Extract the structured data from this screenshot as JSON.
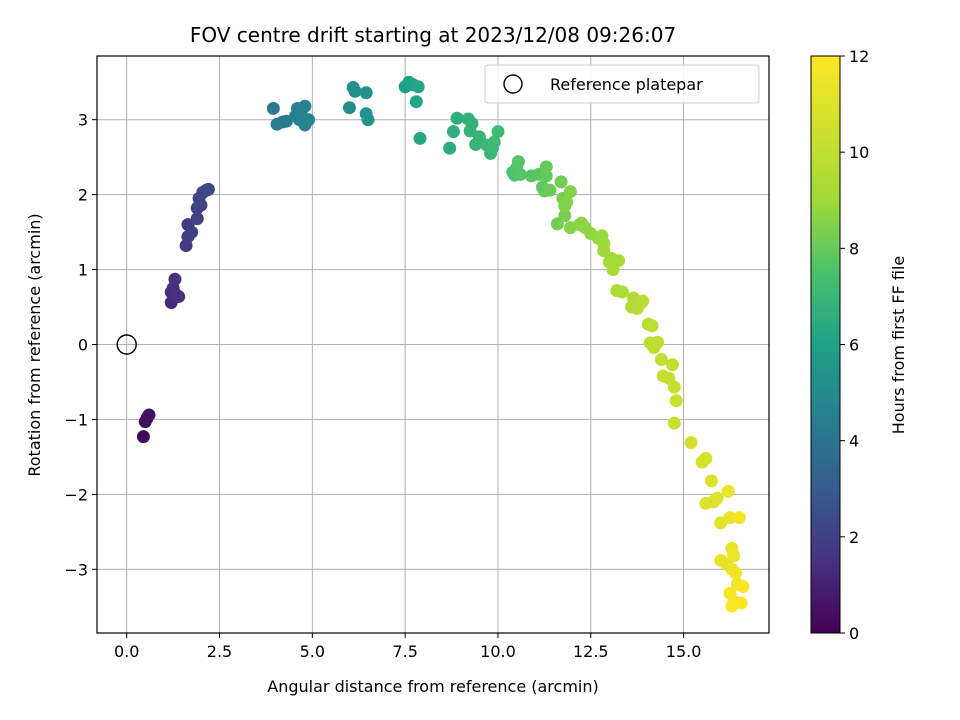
{
  "chart_data": {
    "type": "scatter",
    "title": "FOV centre drift starting at 2023/12/08 09:26:07",
    "xlabel": "Angular distance from reference (arcmin)",
    "ylabel": "Rotation from reference (arcmin)",
    "xlim": [
      -0.8,
      17.3
    ],
    "ylim": [
      -3.85,
      3.85
    ],
    "xticks": [
      0.0,
      2.5,
      5.0,
      7.5,
      10.0,
      12.5,
      15.0
    ],
    "xtick_labels": [
      "0.0",
      "2.5",
      "5.0",
      "7.5",
      "10.0",
      "12.5",
      "15.0"
    ],
    "yticks": [
      -3,
      -2,
      -1,
      0,
      1,
      2,
      3
    ],
    "ytick_labels": [
      "−3",
      "−2",
      "−1",
      "0",
      "1",
      "2",
      "3"
    ],
    "grid": true,
    "legend": {
      "placement": "top-right",
      "entries": [
        "Reference platepar"
      ]
    },
    "reference_point": {
      "x": 0.0,
      "y": 0.0
    },
    "colorbar": {
      "label": "Hours from first FF file",
      "range": [
        0,
        12
      ],
      "ticks": [
        0,
        2,
        4,
        6,
        8,
        10,
        12
      ],
      "tick_labels": [
        "0",
        "2",
        "4",
        "6",
        "8",
        "10",
        "12"
      ],
      "colormap": "viridis"
    },
    "points": [
      [
        0.45,
        -1.23,
        0.2
      ],
      [
        0.5,
        -1.03,
        0.3
      ],
      [
        0.55,
        -0.98,
        0.4
      ],
      [
        0.6,
        -0.94,
        0.5
      ],
      [
        1.2,
        0.56,
        1.3
      ],
      [
        1.2,
        0.7,
        1.35
      ],
      [
        1.25,
        0.75,
        1.4
      ],
      [
        1.3,
        0.68,
        1.45
      ],
      [
        1.3,
        0.87,
        1.5
      ],
      [
        1.4,
        0.64,
        1.55
      ],
      [
        1.6,
        1.32,
        1.8
      ],
      [
        1.65,
        1.44,
        1.85
      ],
      [
        1.65,
        1.6,
        1.9
      ],
      [
        1.75,
        1.5,
        1.95
      ],
      [
        1.9,
        1.68,
        2.0
      ],
      [
        1.9,
        1.82,
        2.05
      ],
      [
        1.95,
        1.95,
        2.1
      ],
      [
        2.0,
        1.86,
        2.15
      ],
      [
        2.05,
        2.03,
        2.2
      ],
      [
        2.15,
        2.06,
        2.25
      ],
      [
        2.2,
        2.07,
        2.3
      ],
      [
        3.95,
        3.15,
        4.3
      ],
      [
        4.05,
        2.94,
        4.35
      ],
      [
        4.2,
        2.97,
        4.4
      ],
      [
        4.3,
        2.98,
        4.45
      ],
      [
        4.55,
        3.05,
        4.5
      ],
      [
        4.6,
        3.15,
        4.55
      ],
      [
        4.65,
        3.0,
        4.6
      ],
      [
        4.7,
        3.1,
        4.6
      ],
      [
        4.8,
        3.18,
        4.65
      ],
      [
        4.8,
        2.93,
        4.65
      ],
      [
        4.9,
        3.0,
        4.7
      ],
      [
        6.0,
        3.16,
        5.1
      ],
      [
        6.1,
        3.43,
        5.2
      ],
      [
        6.15,
        3.38,
        5.25
      ],
      [
        6.45,
        3.36,
        5.3
      ],
      [
        6.45,
        3.08,
        5.35
      ],
      [
        6.5,
        3.0,
        5.4
      ],
      [
        7.5,
        3.44,
        6.0
      ],
      [
        7.6,
        3.5,
        6.05
      ],
      [
        7.7,
        3.47,
        6.1
      ],
      [
        7.8,
        3.24,
        6.15
      ],
      [
        7.85,
        3.44,
        6.2
      ],
      [
        7.9,
        2.75,
        6.3
      ],
      [
        8.7,
        2.62,
        6.5
      ],
      [
        8.8,
        2.84,
        6.55
      ],
      [
        8.9,
        3.02,
        6.6
      ],
      [
        9.2,
        3.01,
        6.7
      ],
      [
        9.25,
        2.85,
        6.75
      ],
      [
        9.3,
        2.95,
        6.8
      ],
      [
        9.4,
        2.67,
        6.85
      ],
      [
        9.5,
        2.77,
        6.9
      ],
      [
        9.7,
        2.66,
        6.95
      ],
      [
        9.8,
        2.55,
        7.0
      ],
      [
        9.85,
        2.62,
        7.05
      ],
      [
        9.9,
        2.7,
        7.1
      ],
      [
        10.0,
        2.84,
        7.15
      ],
      [
        10.4,
        2.3,
        7.5
      ],
      [
        10.45,
        2.26,
        7.55
      ],
      [
        10.5,
        2.35,
        7.6
      ],
      [
        10.55,
        2.44,
        7.65
      ],
      [
        10.6,
        2.27,
        7.7
      ],
      [
        10.9,
        2.25,
        7.75
      ],
      [
        11.1,
        2.27,
        7.8
      ],
      [
        11.2,
        2.1,
        7.85
      ],
      [
        11.25,
        2.05,
        7.9
      ],
      [
        11.3,
        2.25,
        7.95
      ],
      [
        11.3,
        2.37,
        8.0
      ],
      [
        11.4,
        2.06,
        8.05
      ],
      [
        11.6,
        1.61,
        8.2
      ],
      [
        11.7,
        2.17,
        8.25
      ],
      [
        11.75,
        1.95,
        8.3
      ],
      [
        11.8,
        1.72,
        8.35
      ],
      [
        11.8,
        1.85,
        8.4
      ],
      [
        11.85,
        1.9,
        8.45
      ],
      [
        11.95,
        2.04,
        8.5
      ],
      [
        11.95,
        1.56,
        8.55
      ],
      [
        12.2,
        1.6,
        8.6
      ],
      [
        12.25,
        1.62,
        8.65
      ],
      [
        12.35,
        1.56,
        8.7
      ],
      [
        12.5,
        1.48,
        8.75
      ],
      [
        12.7,
        1.42,
        8.8
      ],
      [
        12.8,
        1.45,
        8.85
      ],
      [
        12.85,
        1.35,
        8.9
      ],
      [
        12.85,
        1.25,
        8.95
      ],
      [
        13.0,
        1.1,
        9.1
      ],
      [
        13.05,
        1.15,
        9.15
      ],
      [
        13.1,
        1.0,
        9.2
      ],
      [
        13.25,
        1.12,
        9.25
      ],
      [
        13.2,
        0.72,
        9.35
      ],
      [
        13.35,
        0.7,
        9.4
      ],
      [
        13.6,
        0.5,
        9.5
      ],
      [
        13.65,
        0.62,
        9.55
      ],
      [
        13.75,
        0.48,
        9.6
      ],
      [
        13.85,
        0.55,
        9.65
      ],
      [
        13.9,
        0.58,
        9.7
      ],
      [
        14.05,
        0.27,
        9.8
      ],
      [
        14.15,
        0.25,
        9.85
      ],
      [
        14.1,
        0.02,
        9.9
      ],
      [
        14.2,
        -0.04,
        9.95
      ],
      [
        14.3,
        0.03,
        10.0
      ],
      [
        14.4,
        -0.2,
        10.05
      ],
      [
        14.45,
        -0.42,
        10.1
      ],
      [
        14.6,
        -0.45,
        10.15
      ],
      [
        14.7,
        -0.27,
        10.2
      ],
      [
        14.75,
        -0.57,
        10.25
      ],
      [
        14.8,
        -0.75,
        10.3
      ],
      [
        14.75,
        -1.05,
        10.35
      ],
      [
        15.2,
        -1.31,
        10.6
      ],
      [
        15.5,
        -1.57,
        10.75
      ],
      [
        15.6,
        -1.52,
        10.8
      ],
      [
        15.6,
        -2.12,
        10.85
      ],
      [
        15.75,
        -1.82,
        10.9
      ],
      [
        15.8,
        -2.1,
        10.95
      ],
      [
        15.9,
        -2.05,
        11.0
      ],
      [
        16.0,
        -2.38,
        11.1
      ],
      [
        16.0,
        -2.88,
        11.2
      ],
      [
        16.15,
        -2.93,
        11.25
      ],
      [
        16.2,
        -1.96,
        11.3
      ],
      [
        16.25,
        -2.31,
        11.35
      ],
      [
        16.3,
        -2.72,
        11.4
      ],
      [
        16.3,
        -3.0,
        11.45
      ],
      [
        16.35,
        -2.82,
        11.5
      ],
      [
        16.4,
        -3.05,
        11.55
      ],
      [
        16.45,
        -3.2,
        11.6
      ],
      [
        16.5,
        -2.31,
        11.65
      ],
      [
        16.25,
        -3.32,
        11.7
      ],
      [
        16.35,
        -3.43,
        11.75
      ],
      [
        16.6,
        -3.23,
        11.8
      ],
      [
        16.55,
        -3.45,
        11.85
      ],
      [
        16.3,
        -3.49,
        11.9
      ]
    ]
  }
}
